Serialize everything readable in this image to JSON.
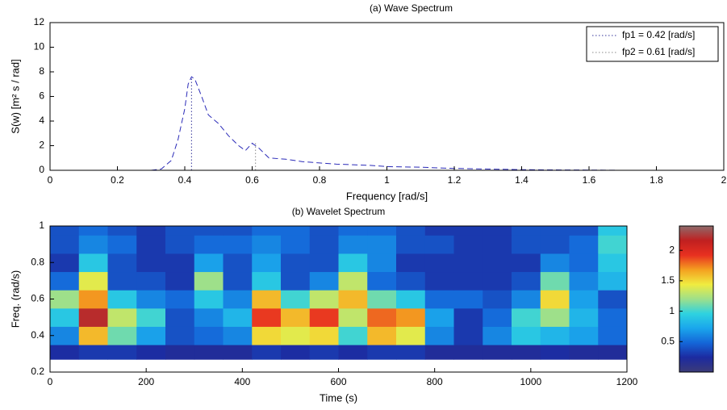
{
  "chart_data": [
    {
      "type": "line",
      "title": "(a) Wave Spectrum",
      "xlabel": "Frequency [rad/s]",
      "ylabel": "S(w) [m² s / rad]",
      "xlim": [
        0,
        2
      ],
      "xticks": [
        0,
        0.2,
        0.4,
        0.6,
        0.8,
        1,
        1.2,
        1.4,
        1.6,
        1.8,
        2
      ],
      "ylim": [
        0,
        12
      ],
      "yticks": [
        0,
        2,
        4,
        6,
        8,
        10,
        12
      ],
      "legend": "upper-right",
      "series": [
        {
          "color": "#2a2ab8",
          "x": [
            0.3,
            0.33,
            0.36,
            0.38,
            0.4,
            0.41,
            0.42,
            0.43,
            0.45,
            0.47,
            0.5,
            0.53,
            0.56,
            0.58,
            0.6,
            0.62,
            0.65,
            0.7,
            0.75,
            0.8,
            0.85,
            0.9,
            0.95,
            1.0,
            1.1,
            1.2,
            1.3,
            1.4,
            1.5,
            1.6,
            1.7
          ],
          "values": [
            0,
            0.1,
            0.8,
            2.5,
            5,
            7,
            7.6,
            7.4,
            6,
            4.5,
            3.8,
            2.8,
            2,
            1.6,
            2.2,
            1.8,
            1.0,
            0.9,
            0.7,
            0.6,
            0.5,
            0.45,
            0.4,
            0.3,
            0.25,
            0.15,
            0.1,
            0.05,
            0.03,
            0.02,
            0
          ]
        }
      ],
      "markers": [
        {
          "name": "fp1 = 0.42 [rad/s]",
          "x": 0.42,
          "y": 7.6,
          "color": "#333399"
        },
        {
          "name": "fp2 = 0.61 [rad/s]",
          "x": 0.61,
          "y": 2.2,
          "color": "#8a8a8a"
        }
      ]
    },
    {
      "type": "heatmap",
      "title": "(b) Wavelet Spectrum",
      "xlabel": "Time (s)",
      "ylabel": "Freq. (rad/s)",
      "xlim": [
        0,
        1200
      ],
      "xticks": [
        0,
        200,
        400,
        600,
        800,
        1000,
        1200
      ],
      "ylim": [
        0.2,
        1
      ],
      "yticks": [
        0.2,
        0.4,
        0.6,
        0.8,
        1
      ],
      "x": [
        0,
        60,
        120,
        180,
        240,
        300,
        360,
        420,
        480,
        540,
        600,
        660,
        720,
        780,
        840,
        900,
        960,
        1020,
        1080,
        1140,
        1200
      ],
      "y": [
        0.27,
        0.35,
        0.45,
        0.55,
        0.65,
        0.75,
        0.85,
        0.95,
        1.0
      ],
      "z": [
        [
          0.25,
          0.3,
          0.3,
          0.25,
          0.2,
          0.2,
          0.2,
          0.3,
          0.25,
          0.3,
          0.25,
          0.3,
          0.3,
          0.2,
          0.2,
          0.2,
          0.2,
          0.25,
          0.2,
          0.2
        ],
        [
          0.6,
          1.6,
          1.1,
          0.7,
          0.4,
          0.5,
          0.6,
          1.5,
          1.4,
          1.5,
          1.0,
          1.6,
          1.4,
          0.6,
          0.3,
          0.6,
          0.9,
          0.8,
          0.7,
          0.5
        ],
        [
          0.9,
          2.2,
          1.3,
          1.0,
          0.4,
          0.6,
          0.8,
          1.9,
          1.6,
          1.9,
          1.3,
          1.8,
          1.7,
          0.7,
          0.3,
          0.5,
          1.0,
          1.2,
          0.8,
          0.5
        ],
        [
          1.2,
          1.7,
          0.9,
          0.6,
          0.5,
          0.9,
          0.6,
          1.6,
          1.0,
          1.3,
          1.6,
          1.1,
          0.9,
          0.5,
          0.5,
          0.4,
          0.6,
          1.5,
          0.7,
          0.4
        ],
        [
          0.5,
          1.4,
          0.4,
          0.4,
          0.3,
          1.2,
          0.4,
          0.9,
          0.4,
          0.6,
          1.3,
          0.5,
          0.4,
          0.3,
          0.3,
          0.3,
          0.4,
          1.1,
          0.6,
          0.8
        ],
        [
          0.3,
          0.9,
          0.4,
          0.3,
          0.3,
          0.7,
          0.4,
          0.7,
          0.4,
          0.4,
          0.9,
          0.6,
          0.3,
          0.3,
          0.3,
          0.3,
          0.3,
          0.6,
          0.5,
          0.9
        ],
        [
          0.4,
          0.6,
          0.5,
          0.3,
          0.4,
          0.5,
          0.5,
          0.6,
          0.5,
          0.4,
          0.6,
          0.6,
          0.4,
          0.4,
          0.3,
          0.3,
          0.4,
          0.4,
          0.5,
          1.0
        ],
        [
          0.4,
          0.5,
          0.4,
          0.3,
          0.4,
          0.4,
          0.4,
          0.5,
          0.5,
          0.4,
          0.5,
          0.5,
          0.4,
          0.3,
          0.3,
          0.3,
          0.4,
          0.4,
          0.4,
          0.9
        ]
      ],
      "clim": [
        0,
        2.4
      ],
      "cticks": [
        0.5,
        1,
        1.5,
        2
      ],
      "colormap": [
        "#3b3b78",
        "#1c2aa0",
        "#1466d8",
        "#1aa6ec",
        "#2ed2e0",
        "#9ee08a",
        "#f0ec40",
        "#f4a020",
        "#e83020",
        "#c02020",
        "#8e6a6a"
      ]
    }
  ]
}
